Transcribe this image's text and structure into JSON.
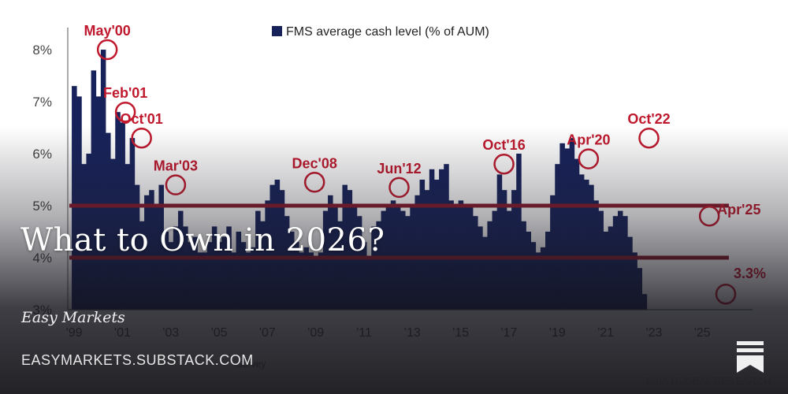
{
  "post": {
    "title": "What to Own in 2026?",
    "publication": "Easy Markets",
    "url": "EASYMARKETS.SUBSTACK.COM"
  },
  "colors": {
    "bar": "#17225a",
    "annotation": "#c0182c",
    "band_line": "#8a1a2c"
  },
  "chart_data": {
    "type": "bar",
    "legend": "FMS average cash level (% of AUM)",
    "legend_position": "top-center",
    "ylim": [
      3,
      8.5
    ],
    "yticks": [
      "3%",
      "4%",
      "5%",
      "6%",
      "7%",
      "8%"
    ],
    "ytick_values": [
      3,
      4,
      5,
      6,
      7,
      8
    ],
    "xticks": [
      "'99",
      "'01",
      "'03",
      "'05",
      "'07",
      "'09",
      "'11",
      "'13",
      "'15",
      "'17",
      "'19",
      "'21",
      "'23",
      "'25"
    ],
    "xtick_years": [
      1999,
      2001,
      2003,
      2005,
      2007,
      2009,
      2011,
      2013,
      2015,
      2017,
      2019,
      2021,
      2023,
      2025
    ],
    "reference_lines": [
      5.0,
      4.0
    ],
    "source_text": "BofA GLOBAL RESEARCH",
    "survey_text": "Survey",
    "annotations": [
      {
        "label": "May'00",
        "x": 2000.37,
        "y": 8.0
      },
      {
        "label": "Feb'01",
        "x": 2001.12,
        "y": 6.8
      },
      {
        "label": "Oct'01",
        "x": 2001.79,
        "y": 6.3
      },
      {
        "label": "Mar'03",
        "x": 2003.2,
        "y": 5.4
      },
      {
        "label": "Dec'08",
        "x": 2008.95,
        "y": 5.45
      },
      {
        "label": "Jun'12",
        "x": 2012.45,
        "y": 5.35
      },
      {
        "label": "Oct'16",
        "x": 2016.79,
        "y": 5.8
      },
      {
        "label": "Apr'20",
        "x": 2020.29,
        "y": 5.9
      },
      {
        "label": "Oct'22",
        "x": 2022.79,
        "y": 6.3
      },
      {
        "label": "Apr'25",
        "x": 2025.29,
        "y": 4.8
      },
      {
        "label": "3.3%",
        "x": 2025.97,
        "y": 3.3
      }
    ],
    "series": [
      {
        "start_year": 1998.9,
        "step_years": 0.2,
        "values": [
          7.3,
          7.1,
          5.8,
          6.0,
          7.6,
          7.1,
          8.0,
          6.4,
          5.9,
          6.8,
          6.6,
          5.8,
          6.3,
          5.4,
          4.7,
          5.2,
          5.3,
          5.0,
          5.4,
          4.5,
          4.3,
          4.6,
          4.9,
          4.6,
          4.3,
          4.4,
          4.1,
          4.1,
          4.3,
          4.6,
          4.3,
          4.4,
          4.6,
          4.1,
          4.5,
          4.3,
          4.1,
          4.2,
          4.9,
          4.7,
          5.1,
          5.4,
          5.5,
          5.3,
          4.8,
          4.5,
          4.3,
          4.1,
          4.2,
          4.1,
          4.0,
          4.1,
          4.9,
          5.2,
          5.0,
          4.7,
          5.4,
          5.3,
          5.0,
          4.8,
          4.3,
          4.0,
          4.6,
          4.7,
          4.9,
          5.0,
          5.1,
          5.0,
          4.9,
          4.8,
          5.0,
          5.2,
          5.5,
          5.3,
          5.7,
          5.5,
          5.7,
          5.8,
          5.1,
          5.0,
          5.1,
          5.0,
          5.0,
          4.8,
          4.6,
          4.4,
          4.7,
          4.9,
          5.6,
          5.3,
          4.9,
          5.3,
          6.0,
          4.7,
          4.5,
          4.3,
          4.1,
          4.2,
          4.5,
          5.2,
          5.8,
          6.2,
          6.1,
          6.3,
          5.9,
          5.6,
          5.5,
          5.4,
          5.1,
          4.9,
          4.5,
          4.6,
          4.8,
          4.9,
          4.8,
          4.4,
          4.1,
          3.8,
          3.3
        ]
      }
    ]
  }
}
